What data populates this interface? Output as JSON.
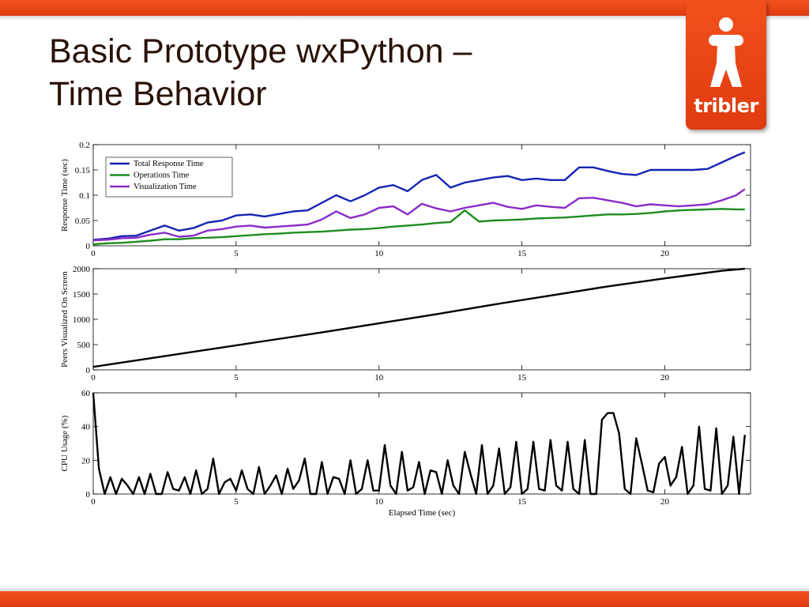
{
  "slide": {
    "title_line1": "Basic Prototype wxPython –",
    "title_line2": "Time Behavior",
    "logo_text": "tribler",
    "accent_color": "#ed4a18"
  },
  "chart_data": [
    {
      "type": "line",
      "ylabel": "Response Time (sec)",
      "xlim": [
        0,
        23
      ],
      "ylim": [
        0,
        0.2
      ],
      "xticks": [
        0,
        5,
        10,
        15,
        20
      ],
      "xtick_labels": [
        "0",
        "5",
        "10",
        "15",
        "20"
      ],
      "yticks": [
        0,
        0.05,
        0.1,
        0.15,
        0.2
      ],
      "ytick_labels": [
        "0",
        "0.05",
        "0.1",
        "0.15",
        "0.2"
      ],
      "legend_position": "top-left",
      "x": [
        0,
        0.5,
        1,
        1.5,
        2,
        2.5,
        3,
        3.5,
        4,
        4.5,
        5,
        5.5,
        6,
        6.5,
        7,
        7.5,
        8,
        8.5,
        9,
        9.5,
        10,
        10.5,
        11,
        11.5,
        12,
        12.5,
        13,
        13.5,
        14,
        14.5,
        15,
        15.5,
        16,
        16.5,
        17,
        17.5,
        18,
        18.5,
        19,
        19.5,
        20,
        20.5,
        21,
        21.5,
        22,
        22.5,
        22.8
      ],
      "series": [
        {
          "name": "Total Response Time",
          "color": "#1424b4",
          "values": [
            0.012,
            0.014,
            0.019,
            0.02,
            0.03,
            0.04,
            0.03,
            0.035,
            0.046,
            0.05,
            0.06,
            0.062,
            0.058,
            0.063,
            0.068,
            0.07,
            0.085,
            0.1,
            0.088,
            0.1,
            0.115,
            0.12,
            0.108,
            0.13,
            0.14,
            0.115,
            0.125,
            0.13,
            0.135,
            0.138,
            0.13,
            0.133,
            0.13,
            0.13,
            0.155,
            0.155,
            0.148,
            0.142,
            0.14,
            0.15,
            0.15,
            0.15,
            0.15,
            0.152,
            0.165,
            0.178,
            0.185
          ]
        },
        {
          "name": "Operations Time",
          "color": "#1e8c1e",
          "values": [
            0.003,
            0.005,
            0.006,
            0.008,
            0.01,
            0.013,
            0.013,
            0.015,
            0.016,
            0.017,
            0.019,
            0.021,
            0.023,
            0.024,
            0.026,
            0.027,
            0.028,
            0.03,
            0.032,
            0.033,
            0.035,
            0.038,
            0.04,
            0.042,
            0.045,
            0.047,
            0.07,
            0.048,
            0.05,
            0.051,
            0.052,
            0.054,
            0.055,
            0.056,
            0.058,
            0.06,
            0.062,
            0.062,
            0.063,
            0.065,
            0.068,
            0.07,
            0.071,
            0.072,
            0.073,
            0.072,
            0.072
          ]
        },
        {
          "name": "Visualization Time",
          "color": "#8a2bc8",
          "values": [
            0.011,
            0.012,
            0.015,
            0.016,
            0.022,
            0.026,
            0.018,
            0.02,
            0.03,
            0.033,
            0.038,
            0.04,
            0.036,
            0.038,
            0.04,
            0.042,
            0.052,
            0.068,
            0.055,
            0.062,
            0.075,
            0.078,
            0.062,
            0.083,
            0.074,
            0.068,
            0.075,
            0.08,
            0.085,
            0.077,
            0.073,
            0.08,
            0.077,
            0.075,
            0.094,
            0.095,
            0.09,
            0.085,
            0.078,
            0.082,
            0.08,
            0.078,
            0.08,
            0.082,
            0.09,
            0.1,
            0.112
          ]
        }
      ]
    },
    {
      "type": "line",
      "ylabel": "Peers Visualized On Screen",
      "xlim": [
        0,
        23
      ],
      "ylim": [
        0,
        2000
      ],
      "xticks": [
        0,
        5,
        10,
        15,
        20
      ],
      "xtick_labels": [
        "0",
        "5",
        "10",
        "15",
        "20"
      ],
      "yticks": [
        0,
        500,
        1000,
        1500,
        2000
      ],
      "ytick_labels": [
        "0",
        "500",
        "1000",
        "1500",
        "2000"
      ],
      "x": [
        0,
        2,
        4,
        6,
        8,
        10,
        12,
        14,
        16,
        18,
        20,
        22,
        22.8
      ],
      "series": [
        {
          "color": "#000000",
          "values": [
            60,
            230,
            400,
            570,
            740,
            920,
            1100,
            1290,
            1470,
            1650,
            1810,
            1960,
            2000
          ]
        }
      ]
    },
    {
      "type": "line",
      "ylabel": "CPU Usage (%)",
      "xlabel": "Elapsed Time (sec)",
      "xlim": [
        0,
        23
      ],
      "ylim": [
        0,
        60
      ],
      "xticks": [
        0,
        5,
        10,
        15,
        20
      ],
      "xtick_labels": [
        "0",
        "5",
        "10",
        "15",
        "20"
      ],
      "yticks": [
        0,
        20,
        40,
        60
      ],
      "ytick_labels": [
        "0",
        "20",
        "40",
        "60"
      ],
      "x": [
        0,
        0.2,
        0.4,
        0.6,
        0.8,
        1.0,
        1.2,
        1.4,
        1.6,
        1.8,
        2.0,
        2.2,
        2.4,
        2.6,
        2.8,
        3.0,
        3.2,
        3.4,
        3.6,
        3.8,
        4.0,
        4.2,
        4.4,
        4.6,
        4.8,
        5.0,
        5.2,
        5.4,
        5.6,
        5.8,
        6.0,
        6.2,
        6.4,
        6.6,
        6.8,
        7.0,
        7.2,
        7.4,
        7.6,
        7.8,
        8.0,
        8.2,
        8.4,
        8.6,
        8.8,
        9.0,
        9.2,
        9.4,
        9.6,
        9.8,
        10.0,
        10.2,
        10.4,
        10.6,
        10.8,
        11.0,
        11.2,
        11.4,
        11.6,
        11.8,
        12.0,
        12.2,
        12.4,
        12.6,
        12.8,
        13.0,
        13.2,
        13.4,
        13.6,
        13.8,
        14.0,
        14.2,
        14.4,
        14.6,
        14.8,
        15.0,
        15.2,
        15.4,
        15.6,
        15.8,
        16.0,
        16.2,
        16.4,
        16.6,
        16.8,
        17.0,
        17.2,
        17.4,
        17.6,
        17.8,
        18.0,
        18.2,
        18.4,
        18.6,
        18.8,
        19.0,
        19.2,
        19.4,
        19.6,
        19.8,
        20.0,
        20.2,
        20.4,
        20.6,
        20.8,
        21.0,
        21.2,
        21.4,
        21.6,
        21.8,
        22.0,
        22.2,
        22.4,
        22.6,
        22.8
      ],
      "series": [
        {
          "color": "#000000",
          "values": [
            60,
            15,
            0,
            10,
            0,
            9,
            5,
            0,
            10,
            0,
            12,
            0,
            0,
            13,
            3,
            2,
            10,
            0,
            14,
            0,
            3,
            21,
            0,
            7,
            9,
            2,
            14,
            3,
            0,
            16,
            0,
            5,
            11,
            0,
            15,
            3,
            8,
            21,
            0,
            0,
            19,
            0,
            10,
            9,
            0,
            20,
            0,
            3,
            20,
            2,
            2,
            29,
            5,
            0,
            25,
            2,
            4,
            19,
            0,
            14,
            13,
            0,
            20,
            5,
            0,
            25,
            12,
            0,
            29,
            0,
            5,
            27,
            0,
            4,
            31,
            0,
            3,
            31,
            3,
            2,
            32,
            5,
            2,
            31,
            3,
            0,
            32,
            0,
            0,
            44,
            48,
            48,
            36,
            3,
            0,
            33,
            18,
            2,
            1,
            18,
            22,
            5,
            10,
            28,
            0,
            5,
            40,
            3,
            2,
            39,
            0,
            5,
            34,
            0,
            35
          ]
        }
      ]
    }
  ]
}
